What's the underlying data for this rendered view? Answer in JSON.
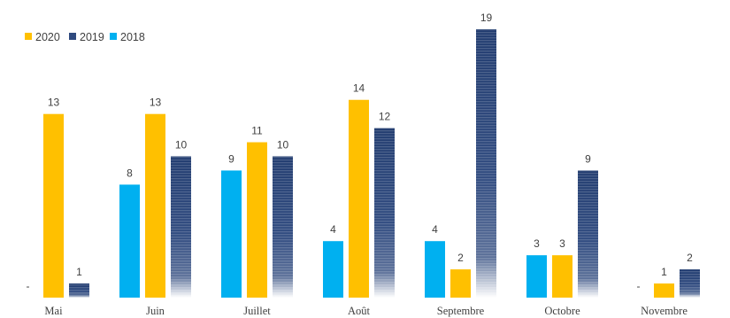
{
  "chart_data": {
    "type": "bar",
    "categories": [
      "Mai",
      "Juin",
      "Juillet",
      "Août",
      "Septembre",
      "Octobre",
      "Novembre"
    ],
    "series": [
      {
        "name": "2018",
        "color": "#00B0F0",
        "values": [
          null,
          8,
          9,
          4,
          4,
          3,
          null
        ],
        "labels": [
          "-",
          "8",
          "9",
          "4",
          "4",
          "3",
          "-"
        ]
      },
      {
        "name": "2020",
        "color": "#FFC000",
        "values": [
          13,
          13,
          11,
          14,
          2,
          3,
          1
        ],
        "labels": [
          "13",
          "13",
          "11",
          "14",
          "2",
          "3",
          "1"
        ]
      },
      {
        "name": "2019",
        "color": "#2F4A7F",
        "values": [
          1,
          10,
          10,
          12,
          19,
          9,
          2
        ],
        "labels": [
          "1",
          "10",
          "10",
          "12",
          "19",
          "9",
          "2"
        ]
      }
    ],
    "legend": {
      "position": "top-left",
      "order": [
        "2020",
        "2019",
        "2018"
      ]
    },
    "ylim": [
      0,
      19
    ],
    "grid": false
  }
}
